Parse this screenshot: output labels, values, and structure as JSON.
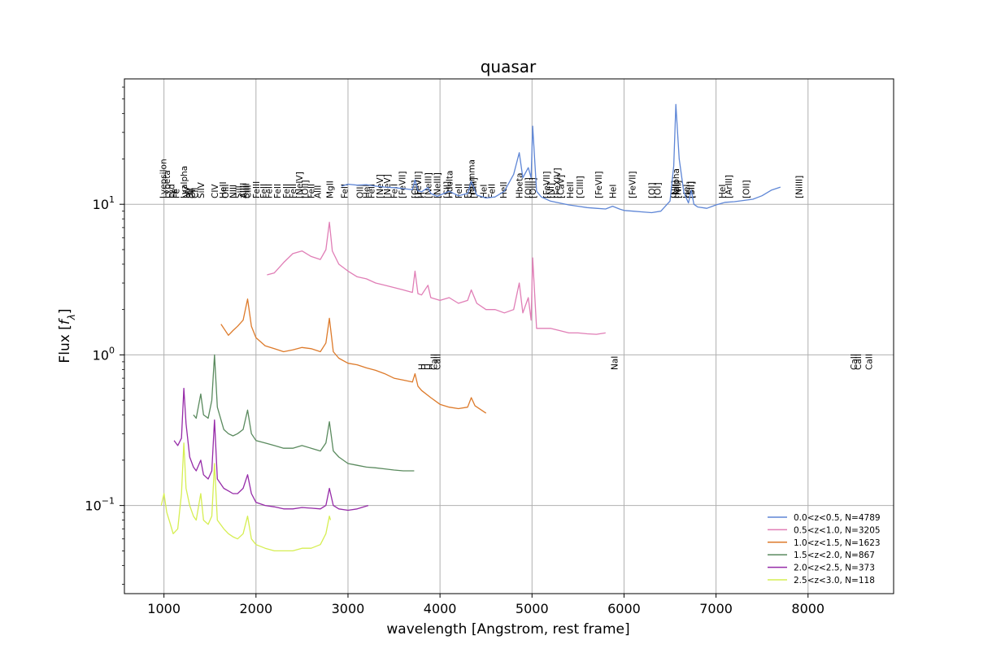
{
  "chart_data": {
    "type": "line",
    "title": "quasar",
    "xlabel": "wavelength [Angstrom, rest frame]",
    "ylabel": "Flux [f_λ]",
    "xlim": [
      570,
      8930
    ],
    "ylim": [
      0.026,
      68
    ],
    "yscale": "log",
    "grid": true,
    "legend_position": "bottom-right",
    "x_ticks": [
      1000,
      2000,
      3000,
      4000,
      5000,
      6000,
      7000,
      8000
    ],
    "y_ticks": [
      {
        "value": 0.1,
        "base": "10",
        "exp": "−1"
      },
      {
        "value": 1,
        "base": "10",
        "exp": "0"
      },
      {
        "value": 10,
        "base": "10",
        "exp": "1"
      }
    ],
    "series": [
      {
        "name": "0.0<z<0.5, N=4789",
        "color": "#5e86d6",
        "x": [
          2930,
          3000,
          3100,
          3200,
          3300,
          3400,
          3500,
          3600,
          3700,
          3728,
          3760,
          3800,
          3869,
          3900,
          3970,
          4000,
          4100,
          4200,
          4300,
          4340,
          4400,
          4500,
          4600,
          4700,
          4800,
          4861,
          4900,
          4959,
          4990,
          5007,
          5050,
          5100,
          5200,
          5300,
          5400,
          5500,
          5600,
          5700,
          5800,
          5876,
          5950,
          6000,
          6100,
          6200,
          6300,
          6400,
          6500,
          6540,
          6563,
          6600,
          6650,
          6700,
          6730,
          6760,
          6800,
          6900,
          7000,
          7100,
          7200,
          7300,
          7400,
          7500,
          7600,
          7700
        ],
        "y": [
          13.2,
          13.6,
          13.4,
          13.5,
          13.2,
          13.0,
          12.9,
          12.7,
          12.5,
          14.5,
          12.3,
          12.1,
          12.9,
          11.8,
          11.3,
          11.5,
          12.2,
          11.4,
          11.8,
          14.2,
          11.5,
          11.0,
          11.2,
          12.2,
          15.8,
          22,
          15,
          17.5,
          15,
          33,
          12.2,
          11.2,
          10.5,
          10.2,
          9.9,
          9.7,
          9.5,
          9.4,
          9.3,
          9.7,
          9.3,
          9.1,
          9.0,
          8.9,
          8.8,
          9.0,
          10.5,
          18,
          46,
          20,
          12,
          10.2,
          12.4,
          10.0,
          9.6,
          9.4,
          9.9,
          10.3,
          10.4,
          10.6,
          10.8,
          11.4,
          12.4,
          13.0
        ]
      },
      {
        "name": "0.5<z<1.0, N=3205",
        "color": "#e07eb6",
        "x": [
          2120,
          2200,
          2300,
          2400,
          2500,
          2600,
          2700,
          2760,
          2798,
          2830,
          2900,
          3000,
          3100,
          3200,
          3300,
          3400,
          3500,
          3600,
          3700,
          3728,
          3760,
          3800,
          3869,
          3900,
          4000,
          4100,
          4200,
          4300,
          4340,
          4400,
          4500,
          4600,
          4700,
          4800,
          4861,
          4900,
          4959,
          4990,
          5007,
          5050,
          5100,
          5200,
          5300,
          5400,
          5500,
          5600,
          5700,
          5800
        ],
        "y": [
          3.4,
          3.5,
          4.1,
          4.7,
          4.9,
          4.5,
          4.3,
          5.0,
          7.6,
          4.9,
          4.0,
          3.6,
          3.3,
          3.2,
          3.0,
          2.9,
          2.8,
          2.7,
          2.6,
          3.6,
          2.55,
          2.5,
          2.9,
          2.4,
          2.3,
          2.4,
          2.2,
          2.3,
          2.7,
          2.2,
          2.0,
          2.0,
          1.9,
          2.0,
          3.0,
          1.9,
          2.4,
          1.7,
          4.4,
          1.5,
          1.5,
          1.5,
          1.45,
          1.4,
          1.4,
          1.38,
          1.37,
          1.4
        ]
      },
      {
        "name": "1.0<z<1.5, N=1623",
        "color": "#dd7a2a",
        "x": [
          1620,
          1700,
          1750,
          1800,
          1860,
          1909,
          1950,
          2000,
          2100,
          2200,
          2300,
          2400,
          2500,
          2600,
          2700,
          2760,
          2798,
          2840,
          2900,
          3000,
          3100,
          3200,
          3300,
          3400,
          3500,
          3600,
          3700,
          3728,
          3760,
          3800,
          3900,
          4000,
          4100,
          4200,
          4300,
          4340,
          4380,
          4450,
          4500
        ],
        "y": [
          1.6,
          1.35,
          1.45,
          1.55,
          1.7,
          2.35,
          1.55,
          1.3,
          1.15,
          1.1,
          1.05,
          1.08,
          1.12,
          1.1,
          1.05,
          1.2,
          1.75,
          1.05,
          0.95,
          0.88,
          0.86,
          0.82,
          0.79,
          0.75,
          0.7,
          0.68,
          0.66,
          0.75,
          0.62,
          0.58,
          0.52,
          0.47,
          0.45,
          0.44,
          0.45,
          0.52,
          0.46,
          0.43,
          0.41
        ]
      },
      {
        "name": "1.5<z<2.0, N=867",
        "color": "#5a8a5e",
        "x": [
          1320,
          1350,
          1400,
          1430,
          1480,
          1520,
          1549,
          1580,
          1650,
          1700,
          1750,
          1800,
          1860,
          1909,
          1950,
          2000,
          2100,
          2200,
          2300,
          2400,
          2500,
          2600,
          2700,
          2760,
          2798,
          2840,
          2900,
          3000,
          3100,
          3200,
          3300,
          3400,
          3500,
          3600,
          3720
        ],
        "y": [
          0.4,
          0.38,
          0.55,
          0.4,
          0.38,
          0.5,
          1.0,
          0.45,
          0.32,
          0.3,
          0.29,
          0.3,
          0.32,
          0.43,
          0.3,
          0.27,
          0.26,
          0.25,
          0.24,
          0.24,
          0.25,
          0.24,
          0.23,
          0.26,
          0.36,
          0.23,
          0.21,
          0.19,
          0.185,
          0.18,
          0.178,
          0.175,
          0.172,
          0.17,
          0.17
        ]
      },
      {
        "name": "2.0<z<2.5, N=373",
        "color": "#962ba8",
        "x": [
          1110,
          1150,
          1190,
          1216,
          1240,
          1280,
          1320,
          1350,
          1400,
          1430,
          1480,
          1520,
          1549,
          1580,
          1650,
          1700,
          1750,
          1800,
          1860,
          1909,
          1950,
          2000,
          2100,
          2200,
          2300,
          2400,
          2500,
          2600,
          2700,
          2760,
          2798,
          2840,
          2900,
          3000,
          3100,
          3220
        ],
        "y": [
          0.27,
          0.25,
          0.28,
          0.6,
          0.35,
          0.21,
          0.18,
          0.17,
          0.2,
          0.16,
          0.15,
          0.17,
          0.37,
          0.15,
          0.13,
          0.125,
          0.12,
          0.12,
          0.13,
          0.16,
          0.12,
          0.105,
          0.1,
          0.098,
          0.095,
          0.095,
          0.097,
          0.096,
          0.095,
          0.1,
          0.13,
          0.1,
          0.095,
          0.093,
          0.095,
          0.1
        ]
      },
      {
        "name": "2.5<z<3.0, N=118",
        "color": "#d6ee52",
        "x": [
          970,
          1000,
          1030,
          1070,
          1100,
          1150,
          1190,
          1216,
          1240,
          1280,
          1320,
          1350,
          1400,
          1430,
          1480,
          1520,
          1549,
          1580,
          1650,
          1700,
          1750,
          1800,
          1860,
          1909,
          1950,
          2000,
          2100,
          2200,
          2300,
          2400,
          2500,
          2600,
          2700,
          2760,
          2798,
          2810
        ],
        "y": [
          0.1,
          0.12,
          0.09,
          0.075,
          0.065,
          0.07,
          0.12,
          0.26,
          0.13,
          0.1,
          0.085,
          0.08,
          0.12,
          0.08,
          0.075,
          0.085,
          0.19,
          0.08,
          0.07,
          0.065,
          0.062,
          0.06,
          0.065,
          0.085,
          0.06,
          0.055,
          0.052,
          0.05,
          0.05,
          0.05,
          0.052,
          0.052,
          0.055,
          0.065,
          0.085,
          0.08
        ]
      }
    ],
    "line_labels_top": [
      {
        "x": 990,
        "text": "Lyepsilon"
      },
      {
        "x": 1030,
        "text": "Lybeta"
      },
      {
        "x": 1080,
        "text": "Lyd"
      },
      {
        "x": 1105,
        "text": "Fe"
      },
      {
        "x": 1130,
        "text": "Fe"
      },
      {
        "x": 1215,
        "text": "Lyalpha"
      },
      {
        "x": 1240,
        "text": "NV"
      },
      {
        "x": 1280,
        "text": "SII"
      },
      {
        "x": 1305,
        "text": "OI"
      },
      {
        "x": 1335,
        "text": "CII"
      },
      {
        "x": 1400,
        "text": "SiIV"
      },
      {
        "x": 1549,
        "text": "CIV"
      },
      {
        "x": 1640,
        "text": "HeII"
      },
      {
        "x": 1665,
        "text": "OIII"
      },
      {
        "x": 1750,
        "text": "NIII"
      },
      {
        "x": 1810,
        "text": "SiII"
      },
      {
        "x": 1860,
        "text": "AlIII"
      },
      {
        "x": 1892,
        "text": "SiIII"
      },
      {
        "x": 1909,
        "text": "CIII"
      },
      {
        "x": 2000,
        "text": "FeIII"
      },
      {
        "x": 2080,
        "text": "FeII"
      },
      {
        "x": 2140,
        "text": "FeII"
      },
      {
        "x": 2230,
        "text": "FeII"
      },
      {
        "x": 2330,
        "text": "FeII"
      },
      {
        "x": 2400,
        "text": "FeII"
      },
      {
        "x": 2470,
        "text": "[NeIV]"
      },
      {
        "x": 2530,
        "text": "[OII]"
      },
      {
        "x": 2600,
        "text": "FeII"
      },
      {
        "x": 2670,
        "text": "AlII"
      },
      {
        "x": 2800,
        "text": "MgII"
      },
      {
        "x": 2960,
        "text": "FeII"
      },
      {
        "x": 3130,
        "text": "OIII"
      },
      {
        "x": 3200,
        "text": "HeI"
      },
      {
        "x": 3250,
        "text": "FeII"
      },
      {
        "x": 3346,
        "text": "[NeV]"
      },
      {
        "x": 3426,
        "text": "[NeV]"
      },
      {
        "x": 3500,
        "text": "FeII"
      },
      {
        "x": 3586,
        "text": "[FeVII]"
      },
      {
        "x": 3727,
        "text": "[OII]"
      },
      {
        "x": 3760,
        "text": "[FeVII]"
      },
      {
        "x": 3797,
        "text": "H"
      },
      {
        "x": 3869,
        "text": "[NeIII]"
      },
      {
        "x": 3967,
        "text": "[NeIII]"
      },
      {
        "x": 4072,
        "text": "[SII]"
      },
      {
        "x": 4101,
        "text": "Hdelta"
      },
      {
        "x": 4200,
        "text": "FeII"
      },
      {
        "x": 4300,
        "text": "FeII"
      },
      {
        "x": 4340,
        "text": "Hgamma"
      },
      {
        "x": 4363,
        "text": "[OIII]"
      },
      {
        "x": 4471,
        "text": "HeI"
      },
      {
        "x": 4560,
        "text": "FeII"
      },
      {
        "x": 4686,
        "text": "HeII"
      },
      {
        "x": 4861,
        "text": "Hbeta"
      },
      {
        "x": 4959,
        "text": "[OIII]"
      },
      {
        "x": 5007,
        "text": "[OIII]"
      },
      {
        "x": 5158,
        "text": "[FeVII]"
      },
      {
        "x": 5200,
        "text": "[NI]"
      },
      {
        "x": 5270,
        "text": "[FeXIV]"
      },
      {
        "x": 5309,
        "text": "[CaV]"
      },
      {
        "x": 5411,
        "text": "HeII"
      },
      {
        "x": 5518,
        "text": "[ClIII]"
      },
      {
        "x": 5721,
        "text": "[FeVII]"
      },
      {
        "x": 5876,
        "text": "HeI"
      },
      {
        "x": 6087,
        "text": "[FeVII]"
      },
      {
        "x": 6300,
        "text": "[OI]"
      },
      {
        "x": 6364,
        "text": "[OI]"
      },
      {
        "x": 6548,
        "text": "[NII]"
      },
      {
        "x": 6563,
        "text": "Halpha"
      },
      {
        "x": 6584,
        "text": "[NII]"
      },
      {
        "x": 6678,
        "text": "HeI"
      },
      {
        "x": 6716,
        "text": "[SII]"
      },
      {
        "x": 6731,
        "text": "[SII]"
      },
      {
        "x": 7065,
        "text": "HeI"
      },
      {
        "x": 7136,
        "text": "[ArIII]"
      },
      {
        "x": 7325,
        "text": "[OII]"
      },
      {
        "x": 7900,
        "text": "[NiIII]"
      }
    ],
    "line_labels_mid": [
      {
        "x": 3798,
        "text": "H"
      },
      {
        "x": 3835,
        "text": "H"
      },
      {
        "x": 3889,
        "text": "H"
      },
      {
        "x": 3933,
        "text": "CaII"
      },
      {
        "x": 3968,
        "text": "CaII"
      },
      {
        "x": 5893,
        "text": "NaI"
      },
      {
        "x": 8498,
        "text": "CaII"
      },
      {
        "x": 8542,
        "text": "CaII"
      },
      {
        "x": 8662,
        "text": "CaII"
      }
    ]
  }
}
